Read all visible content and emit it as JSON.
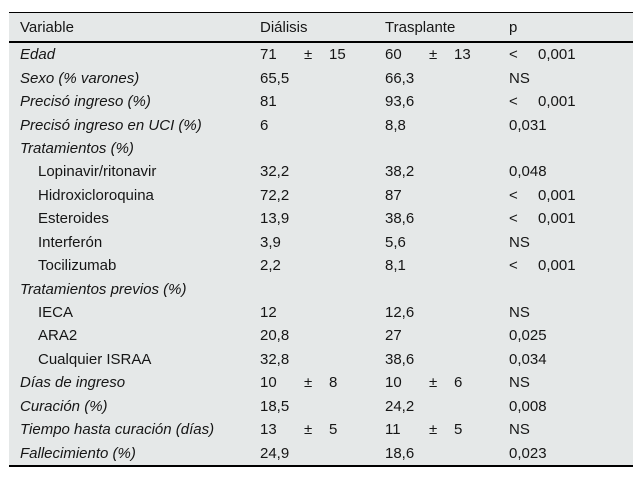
{
  "page": {
    "background": "#ffffff",
    "table_background": "#e5e8e8",
    "rule_color": "#000000"
  },
  "table": {
    "columns": [
      "Variable",
      "Diálisis",
      "Trasplante",
      "p"
    ],
    "rows": [
      {
        "label": "Edad",
        "style": "main",
        "dialisis": {
          "value": "71",
          "pm": "±",
          "sd": "15"
        },
        "trasplante": {
          "value": "60",
          "pm": "±",
          "sd": "13"
        },
        "p": {
          "lt": "<",
          "value": "0,001"
        }
      },
      {
        "label": "Sexo (% varones)",
        "style": "main",
        "dialisis": {
          "value": "65,5"
        },
        "trasplante": {
          "value": "66,3"
        },
        "p": {
          "value": "NS"
        }
      },
      {
        "label": "Precisó ingreso (%)",
        "style": "main",
        "dialisis": {
          "value": "81"
        },
        "trasplante": {
          "value": "93,6"
        },
        "p": {
          "lt": "<",
          "value": "0,001"
        }
      },
      {
        "label": "Precisó ingreso en UCI (%)",
        "style": "main",
        "dialisis": {
          "value": "6"
        },
        "trasplante": {
          "value": "8,8"
        },
        "p": {
          "value": "0,031"
        }
      },
      {
        "label": "Tratamientos (%)",
        "style": "section"
      },
      {
        "label": "Lopinavir/ritonavir",
        "style": "sub",
        "dialisis": {
          "value": "32,2"
        },
        "trasplante": {
          "value": "38,2"
        },
        "p": {
          "value": "0,048"
        }
      },
      {
        "label": "Hidroxicloroquina",
        "style": "sub",
        "dialisis": {
          "value": "72,2"
        },
        "trasplante": {
          "value": "87"
        },
        "p": {
          "lt": "<",
          "value": "0,001"
        }
      },
      {
        "label": "Esteroides",
        "style": "sub",
        "dialisis": {
          "value": "13,9"
        },
        "trasplante": {
          "value": "38,6"
        },
        "p": {
          "lt": "<",
          "value": "0,001"
        }
      },
      {
        "label": "Interferón",
        "style": "sub",
        "dialisis": {
          "value": "3,9"
        },
        "trasplante": {
          "value": "5,6"
        },
        "p": {
          "value": "NS"
        }
      },
      {
        "label": "Tocilizumab",
        "style": "sub",
        "dialisis": {
          "value": "2,2"
        },
        "trasplante": {
          "value": "8,1"
        },
        "p": {
          "lt": "<",
          "value": "0,001"
        }
      },
      {
        "label": "Tratamientos previos (%)",
        "style": "section"
      },
      {
        "label": "IECA",
        "style": "sub",
        "dialisis": {
          "value": "12"
        },
        "trasplante": {
          "value": "12,6"
        },
        "p": {
          "value": "NS"
        }
      },
      {
        "label": "ARA2",
        "style": "sub",
        "dialisis": {
          "value": "20,8"
        },
        "trasplante": {
          "value": "27"
        },
        "p": {
          "value": "0,025"
        }
      },
      {
        "label": "Cualquier ISRAA",
        "style": "sub",
        "dialisis": {
          "value": "32,8"
        },
        "trasplante": {
          "value": "38,6"
        },
        "p": {
          "value": "0,034"
        }
      },
      {
        "label": "Días de ingreso",
        "style": "main",
        "dialisis": {
          "value": "10",
          "pm": "±",
          "sd": "8"
        },
        "trasplante": {
          "value": "10",
          "pm": "±",
          "sd": "6"
        },
        "p": {
          "value": "NS"
        }
      },
      {
        "label": "Curación (%)",
        "style": "main",
        "dialisis": {
          "value": "18,5"
        },
        "trasplante": {
          "value": "24,2"
        },
        "p": {
          "value": "0,008"
        }
      },
      {
        "label": "Tiempo hasta curación (días)",
        "style": "main",
        "dialisis": {
          "value": "13",
          "pm": "±",
          "sd": "5"
        },
        "trasplante": {
          "value": "11",
          "pm": "±",
          "sd": "5"
        },
        "p": {
          "value": "NS"
        }
      },
      {
        "label": "Fallecimiento (%)",
        "style": "main",
        "dialisis": {
          "value": "24,9"
        },
        "trasplante": {
          "value": "18,6"
        },
        "p": {
          "value": "0,023"
        }
      }
    ]
  }
}
